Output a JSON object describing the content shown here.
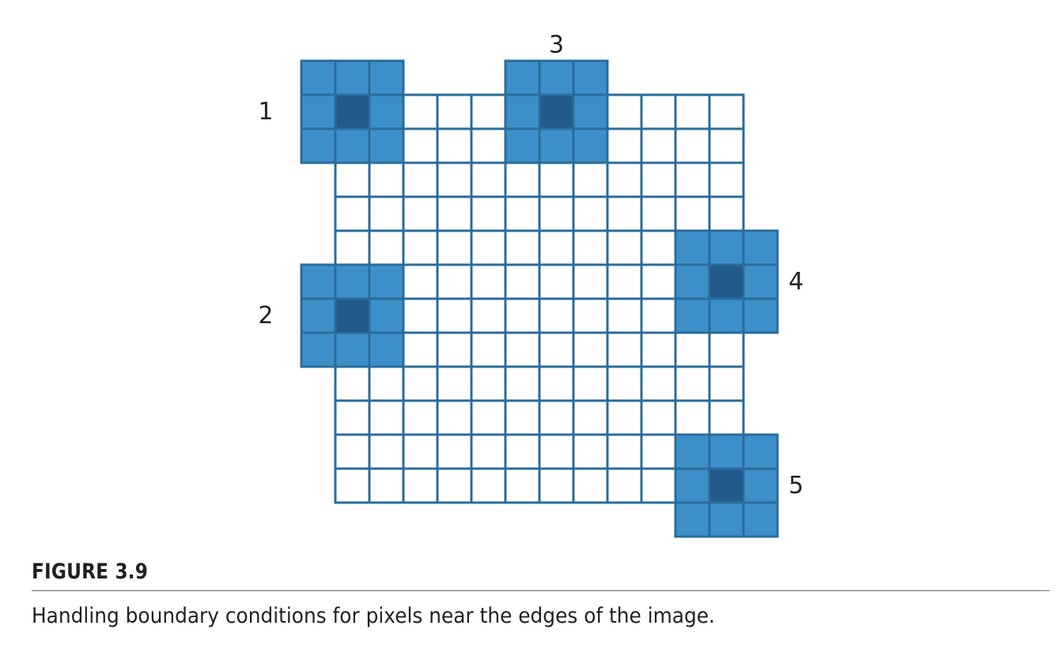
{
  "diagram": {
    "grid_rows": 12,
    "grid_cols": 12,
    "colors": {
      "grid_line": "#2a6c9a",
      "window_fill": "#3d8fc9",
      "center_fill": "#235a8c",
      "grid_fill": "#ffffff"
    },
    "windows": [
      {
        "label": "1",
        "center_row": 0,
        "center_col": 0,
        "label_side": "left"
      },
      {
        "label": "2",
        "center_row": 6,
        "center_col": 0,
        "label_side": "left"
      },
      {
        "label": "3",
        "center_row": 0,
        "center_col": 6,
        "label_side": "top"
      },
      {
        "label": "4",
        "center_row": 5,
        "center_col": 11,
        "label_side": "right"
      },
      {
        "label": "5",
        "center_row": 11,
        "center_col": 11,
        "label_side": "right"
      }
    ]
  },
  "figure": {
    "label": "FIGURE 3.9",
    "caption": "Handling boundary conditions for pixels near the edges of the image."
  }
}
